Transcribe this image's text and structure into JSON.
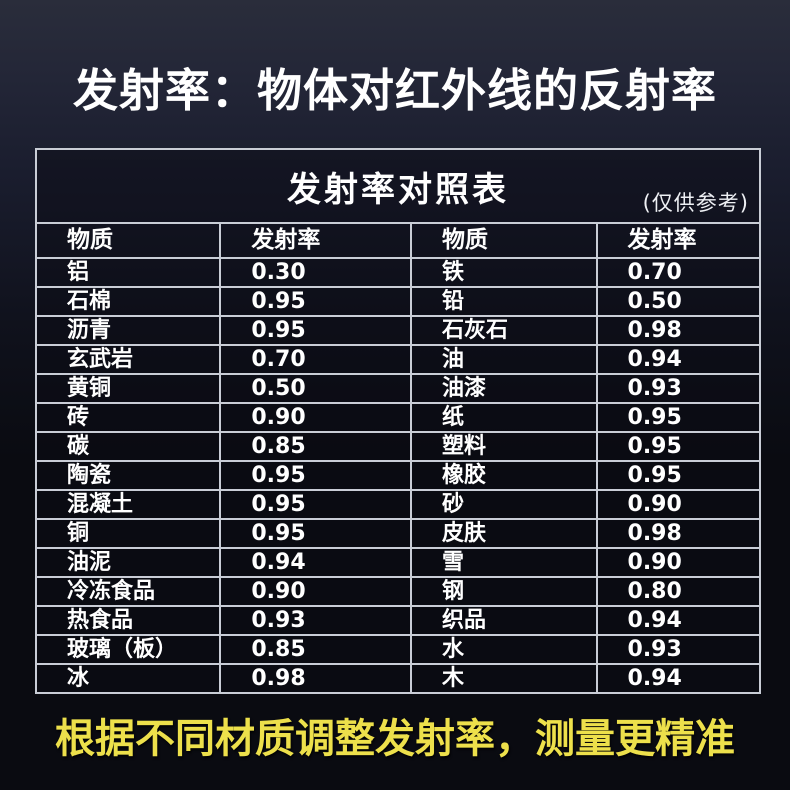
{
  "page": {
    "main_title": "发射率：物体对红外线的反射率",
    "footer_note": "根据不同材质调整发射率，测量更精准",
    "colors": {
      "background": "#0a0b11",
      "grid_line": "#c9cdd6",
      "text": "#ffffff",
      "footer_accent": "#ede04b"
    }
  },
  "table": {
    "title": "发射率对照表",
    "subtitle": "(仅供参考)",
    "headers": [
      "物质",
      "发射率",
      "物质",
      "发射率"
    ],
    "rows": [
      [
        "铝",
        "0.30",
        "铁",
        "0.70"
      ],
      [
        "石棉",
        "0.95",
        "铅",
        "0.50"
      ],
      [
        "沥青",
        "0.95",
        "石灰石",
        "0.98"
      ],
      [
        "玄武岩",
        "0.70",
        "油",
        "0.94"
      ],
      [
        "黄铜",
        "0.50",
        "油漆",
        "0.93"
      ],
      [
        "砖",
        "0.90",
        "纸",
        "0.95"
      ],
      [
        "碳",
        "0.85",
        "塑料",
        "0.95"
      ],
      [
        "陶瓷",
        "0.95",
        "橡胶",
        "0.95"
      ],
      [
        "混凝土",
        "0.95",
        "砂",
        "0.90"
      ],
      [
        "铜",
        "0.95",
        "皮肤",
        "0.98"
      ],
      [
        "油泥",
        "0.94",
        "雪",
        "0.90"
      ],
      [
        "冷冻食品",
        "0.90",
        "钢",
        "0.80"
      ],
      [
        "热食品",
        "0.93",
        "织品",
        "0.94"
      ],
      [
        "玻璃（板）",
        "0.85",
        "水",
        "0.93"
      ],
      [
        "冰",
        "0.98",
        "木",
        "0.94"
      ]
    ]
  },
  "chart_data": {
    "type": "table",
    "title": "发射率对照表",
    "subtitle": "(仅供参考)",
    "columns": [
      "物质",
      "发射率",
      "物质",
      "发射率"
    ],
    "materials": [
      {
        "name": "铝",
        "emissivity": 0.3
      },
      {
        "name": "石棉",
        "emissivity": 0.95
      },
      {
        "name": "沥青",
        "emissivity": 0.95
      },
      {
        "name": "玄武岩",
        "emissivity": 0.7
      },
      {
        "name": "黄铜",
        "emissivity": 0.5
      },
      {
        "name": "砖",
        "emissivity": 0.9
      },
      {
        "name": "碳",
        "emissivity": 0.85
      },
      {
        "name": "陶瓷",
        "emissivity": 0.95
      },
      {
        "name": "混凝土",
        "emissivity": 0.95
      },
      {
        "name": "铜",
        "emissivity": 0.95
      },
      {
        "name": "油泥",
        "emissivity": 0.94
      },
      {
        "name": "冷冻食品",
        "emissivity": 0.9
      },
      {
        "name": "热食品",
        "emissivity": 0.93
      },
      {
        "name": "玻璃（板）",
        "emissivity": 0.85
      },
      {
        "name": "冰",
        "emissivity": 0.98
      },
      {
        "name": "铁",
        "emissivity": 0.7
      },
      {
        "name": "铅",
        "emissivity": 0.5
      },
      {
        "name": "石灰石",
        "emissivity": 0.98
      },
      {
        "name": "油",
        "emissivity": 0.94
      },
      {
        "name": "油漆",
        "emissivity": 0.93
      },
      {
        "name": "纸",
        "emissivity": 0.95
      },
      {
        "name": "塑料",
        "emissivity": 0.95
      },
      {
        "name": "橡胶",
        "emissivity": 0.95
      },
      {
        "name": "砂",
        "emissivity": 0.9
      },
      {
        "name": "皮肤",
        "emissivity": 0.98
      },
      {
        "name": "雪",
        "emissivity": 0.9
      },
      {
        "name": "钢",
        "emissivity": 0.8
      },
      {
        "name": "织品",
        "emissivity": 0.94
      },
      {
        "name": "水",
        "emissivity": 0.93
      },
      {
        "name": "木",
        "emissivity": 0.94
      }
    ]
  }
}
